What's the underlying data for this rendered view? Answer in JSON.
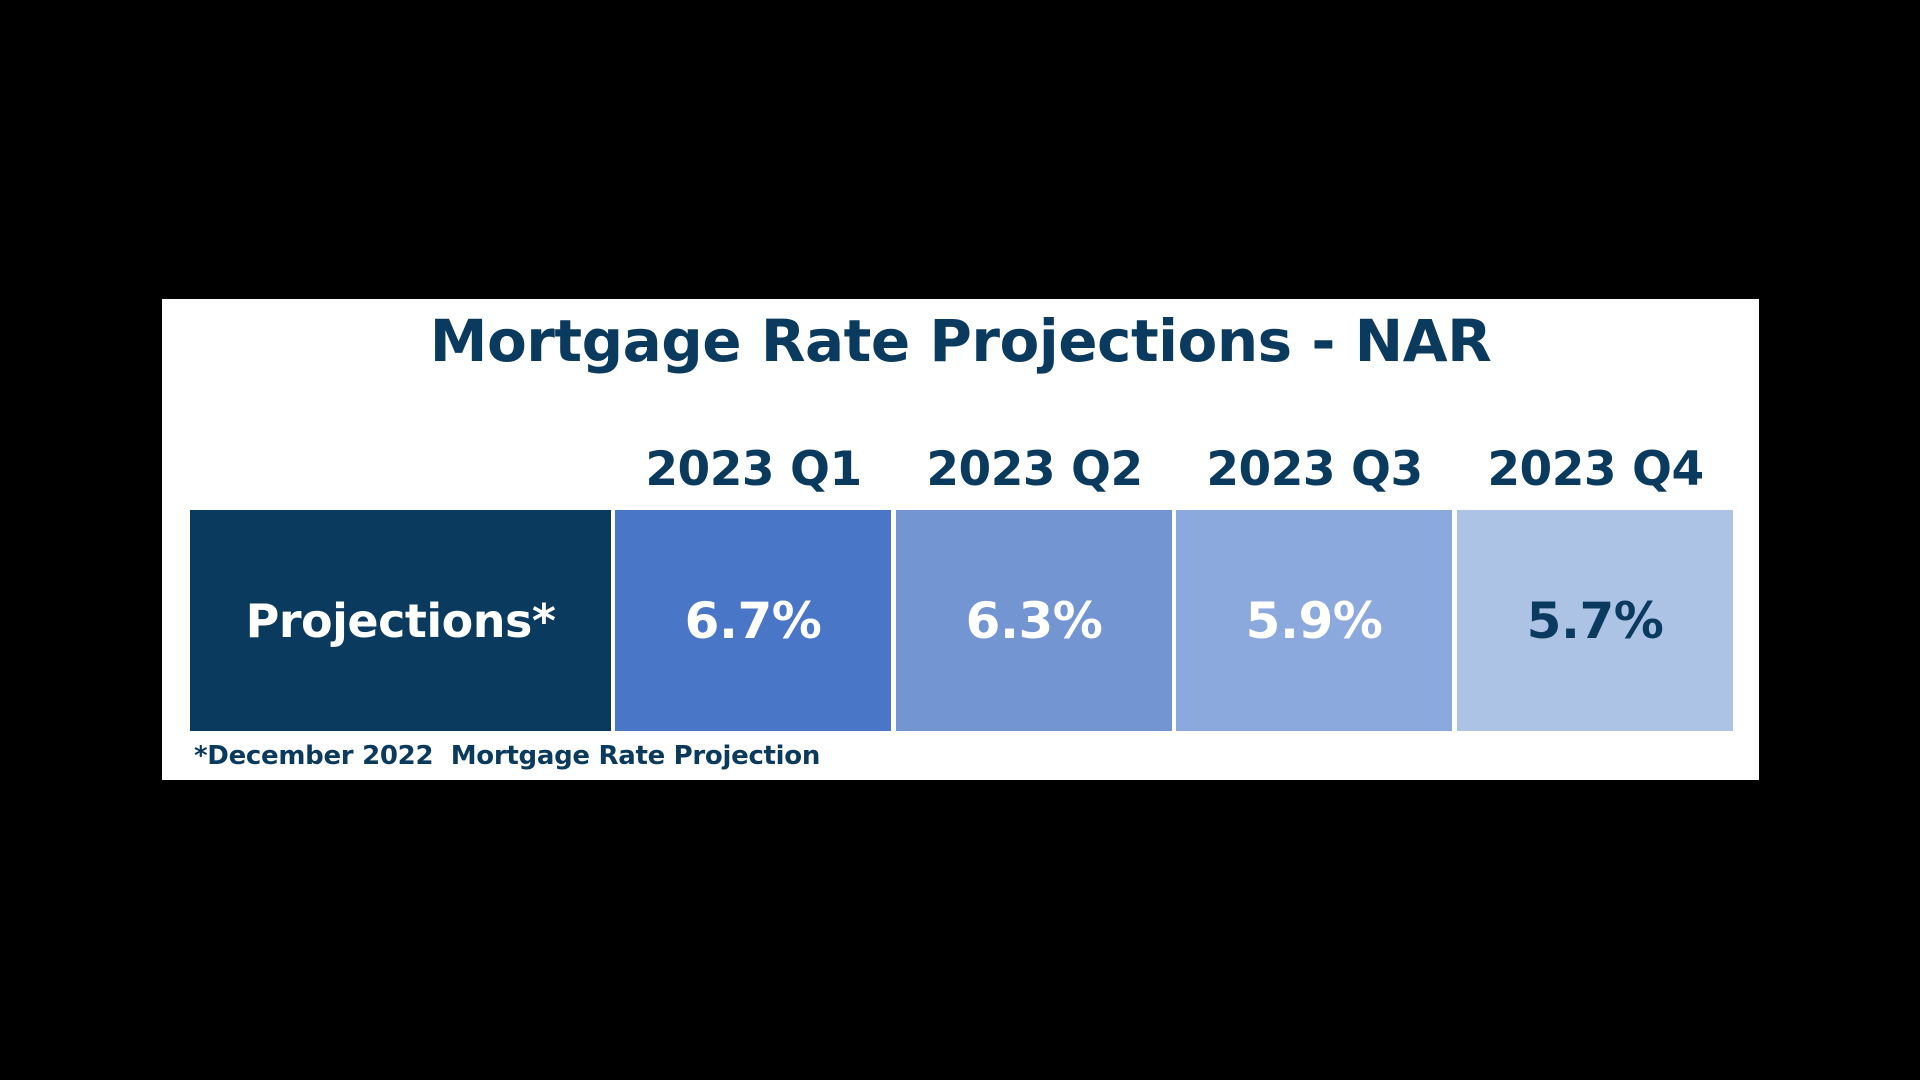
{
  "chart_data": {
    "type": "table",
    "title": "Mortgage Rate Projections - NAR",
    "row_label": "Projections*",
    "categories": [
      "2023 Q1",
      "2023 Q2",
      "2023 Q3",
      "2023 Q4"
    ],
    "value_labels": [
      "6.7%",
      "6.3%",
      "5.9%",
      "5.7%"
    ],
    "values": [
      6.7,
      6.3,
      5.9,
      5.7
    ],
    "unit": "%",
    "footnote": "*December 2022  Mortgage Rate Projection"
  },
  "colors": {
    "background": "#000000",
    "panel": "#ffffff",
    "text_dark": "#0b3a5f",
    "label_cell_bg": "#0b3a5f",
    "label_cell_text": "#ffffff",
    "value_cell_bgs": [
      "#4a76c7",
      "#7395d2",
      "#8ba9dc",
      "#adc3e6"
    ],
    "value_cell_texts": [
      "#ffffff",
      "#ffffff",
      "#ffffff",
      "#0b3a5f"
    ]
  }
}
